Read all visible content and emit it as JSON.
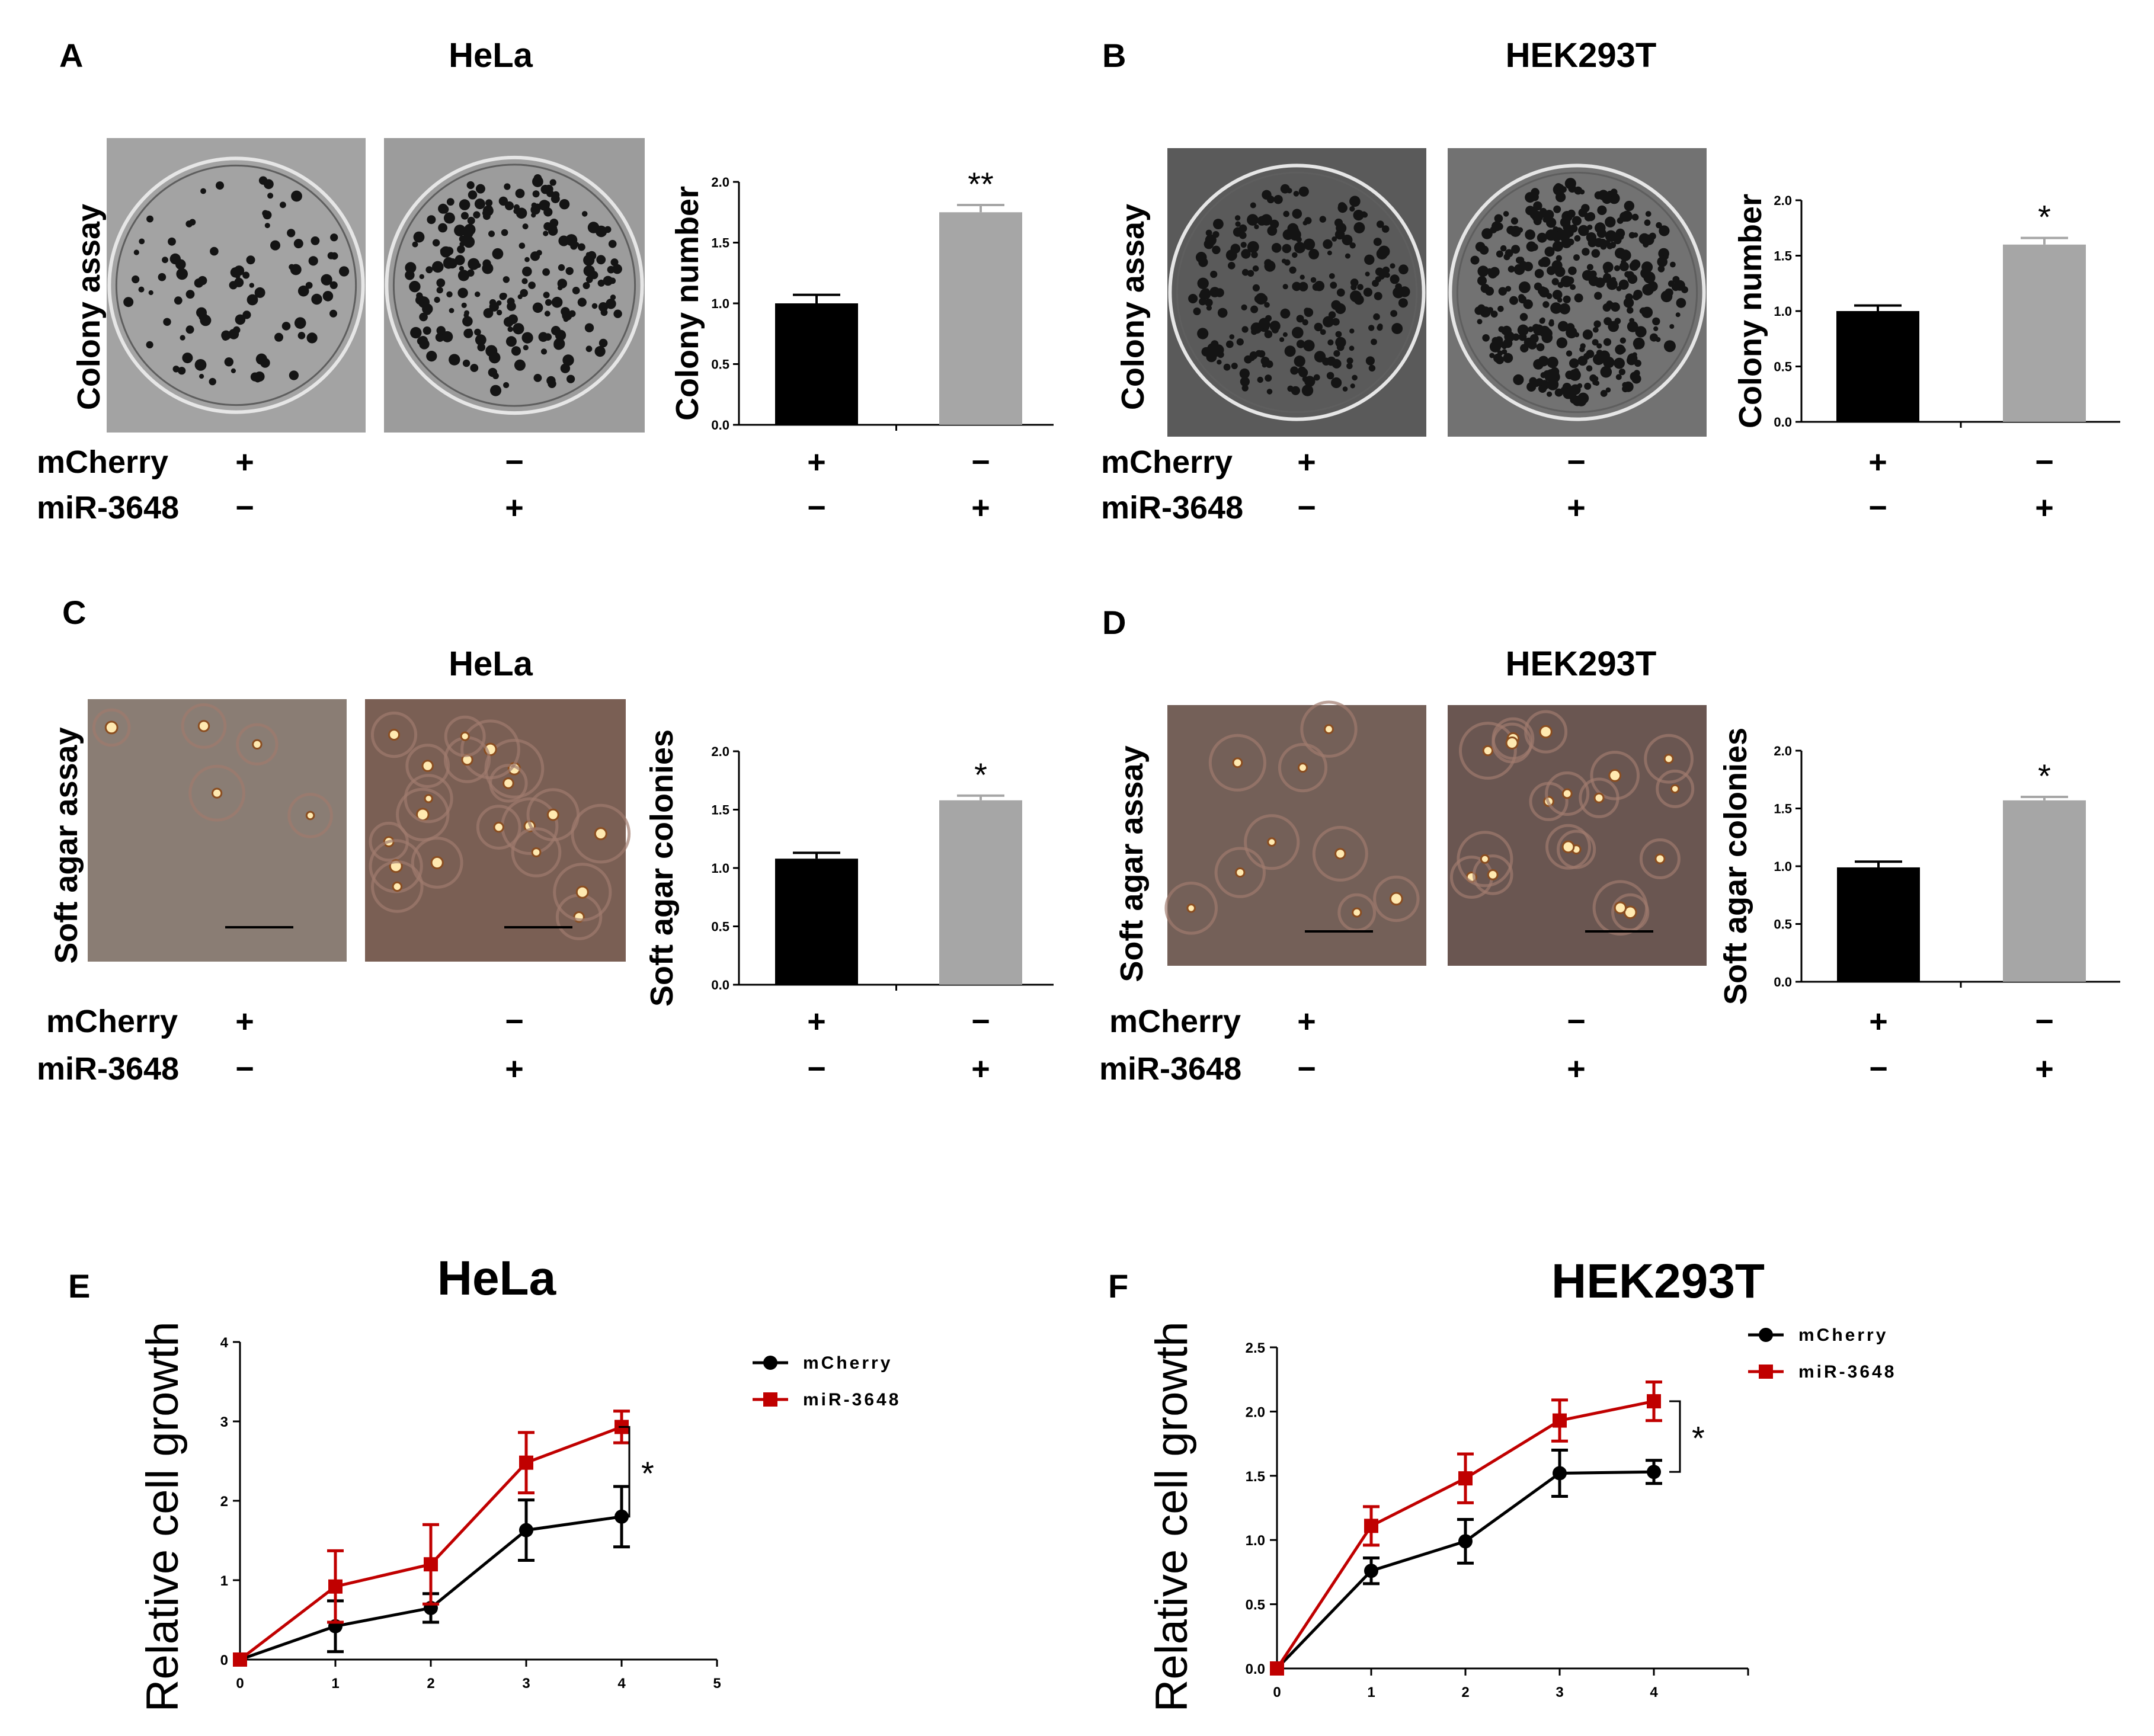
{
  "panels": {
    "A": {
      "letter": "A",
      "title": "HeLa",
      "assay_label": "Colony  assay",
      "row1_label": "mCherry",
      "row2_label": "miR-3648",
      "row1_signs": [
        "+",
        "−"
      ],
      "row2_signs": [
        "−",
        "+"
      ]
    },
    "B": {
      "letter": "B",
      "title": "HEK293T",
      "assay_label": "Colony  assay",
      "row1_label": "mCherry",
      "row2_label": "miR-3648",
      "row1_signs": [
        "+",
        "−"
      ],
      "row2_signs": [
        "−",
        "+"
      ]
    },
    "C": {
      "letter": "C",
      "title": "HeLa",
      "assay_label": "Soft agar assay",
      "row1_label": "mCherry",
      "row2_label": "miR-3648",
      "row1_signs": [
        "+",
        "−"
      ],
      "row2_signs": [
        "−",
        "+"
      ]
    },
    "D": {
      "letter": "D",
      "title": "HEK293T",
      "assay_label": "Soft agar assay",
      "row1_label": "mCherry",
      "row2_label": "miR-3648",
      "row1_signs": [
        "+",
        "−"
      ],
      "row2_signs": [
        "−",
        "+"
      ]
    },
    "E": {
      "letter": "E",
      "title": "HeLa"
    },
    "F": {
      "letter": "F",
      "title": "HEK293T"
    }
  },
  "colors": {
    "black": "#000000",
    "gray": "#a6a6a6",
    "red": "#c00000"
  },
  "chart_data": [
    {
      "id": "A",
      "type": "bar",
      "categories": [
        "mCherry",
        "miR-3648"
      ],
      "values": [
        1.0,
        1.75
      ],
      "errors": [
        0.07,
        0.06
      ],
      "colors": [
        "#000000",
        "#a6a6a6"
      ],
      "ylabel": "Colony  number",
      "ylim": [
        0,
        2.0
      ],
      "yticks": [
        "0.0",
        "0.5",
        "1.0",
        "1.5",
        "2.0"
      ],
      "xlabel_rows": [
        [
          "+",
          "−"
        ],
        [
          "−",
          "+"
        ]
      ],
      "significance": "**"
    },
    {
      "id": "B",
      "type": "bar",
      "categories": [
        "mCherry",
        "miR-3648"
      ],
      "values": [
        1.0,
        1.6
      ],
      "errors": [
        0.05,
        0.06
      ],
      "colors": [
        "#000000",
        "#a6a6a6"
      ],
      "ylabel": "Colony  number",
      "ylim": [
        0,
        2.0
      ],
      "yticks": [
        "0.0",
        "0.5",
        "1.0",
        "1.5",
        "2.0"
      ],
      "xlabel_rows": [
        [
          "+",
          "−"
        ],
        [
          "−",
          "+"
        ]
      ],
      "significance": "*"
    },
    {
      "id": "C",
      "type": "bar",
      "categories": [
        "mCherry",
        "miR-3648"
      ],
      "values": [
        1.08,
        1.58
      ],
      "errors": [
        0.05,
        0.04
      ],
      "colors": [
        "#000000",
        "#a6a6a6"
      ],
      "ylabel": "Soft agar colonies",
      "ylim": [
        0,
        2.0
      ],
      "yticks": [
        "0.0",
        "0.5",
        "1.0",
        "1.5",
        "2.0"
      ],
      "xlabel_rows": [
        [
          "+",
          "−"
        ],
        [
          "−",
          "+"
        ]
      ],
      "significance": "*"
    },
    {
      "id": "D",
      "type": "bar",
      "categories": [
        "mCherry",
        "miR-3648"
      ],
      "values": [
        0.99,
        1.57
      ],
      "errors": [
        0.05,
        0.03
      ],
      "colors": [
        "#000000",
        "#a6a6a6"
      ],
      "ylabel": "Soft agar colonies",
      "ylim": [
        0,
        2.0
      ],
      "yticks": [
        "0.0",
        "0.5",
        "1.0",
        "1.5",
        "2.0"
      ],
      "xlabel_rows": [
        [
          "+",
          "−"
        ],
        [
          "−",
          "+"
        ]
      ],
      "significance": "*"
    },
    {
      "id": "E",
      "type": "line",
      "title": "HeLa",
      "ylabel": "Relative cell growth",
      "xlim": [
        0,
        5
      ],
      "ylim": [
        0,
        4
      ],
      "xticks": [
        "0",
        "1",
        "2",
        "3",
        "4",
        "5"
      ],
      "yticks": [
        "0",
        "1",
        "2",
        "3",
        "4"
      ],
      "significance": "*",
      "series": [
        {
          "name": "mCherry",
          "color": "#000000",
          "marker": "circle",
          "x": [
            0,
            1,
            2,
            3,
            4
          ],
          "y": [
            0,
            0.42,
            0.65,
            1.63,
            1.8
          ],
          "err": [
            0,
            0.32,
            0.18,
            0.38,
            0.38
          ]
        },
        {
          "name": "miR-3648",
          "color": "#c00000",
          "marker": "square",
          "x": [
            0,
            1,
            2,
            3,
            4
          ],
          "y": [
            0,
            0.92,
            1.2,
            2.48,
            2.93
          ],
          "err": [
            0,
            0.45,
            0.5,
            0.38,
            0.2
          ]
        }
      ]
    },
    {
      "id": "F",
      "type": "line",
      "title": "HEK293T",
      "ylabel": "Relative cell growth",
      "xlim": [
        0,
        5
      ],
      "ylim": [
        0,
        2.5
      ],
      "xticks": [
        "0",
        "1",
        "2",
        "3",
        "4"
      ],
      "yticks": [
        "0.0",
        "0.5",
        "1.0",
        "1.5",
        "2.0",
        "2.5"
      ],
      "significance": "*",
      "series": [
        {
          "name": "mCherry",
          "color": "#000000",
          "marker": "circle",
          "x": [
            0,
            1,
            2,
            3,
            4
          ],
          "y": [
            0,
            0.76,
            0.99,
            1.52,
            1.53
          ],
          "err": [
            0,
            0.1,
            0.17,
            0.18,
            0.09
          ]
        },
        {
          "name": "miR-3648",
          "color": "#c00000",
          "marker": "square",
          "x": [
            0,
            1,
            2,
            3,
            4
          ],
          "y": [
            0,
            1.11,
            1.48,
            1.93,
            2.08
          ],
          "err": [
            0,
            0.15,
            0.19,
            0.16,
            0.15
          ]
        }
      ]
    }
  ]
}
